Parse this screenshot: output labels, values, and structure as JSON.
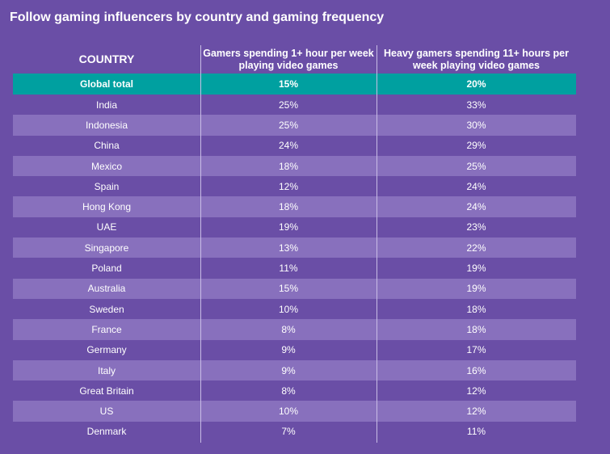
{
  "title": "Follow gaming influencers by country and gaming frequency",
  "colors": {
    "background": "#6a4ea6",
    "alt_row": "#8870bd",
    "highlight_row": "#00a0a0"
  },
  "chart_data": {
    "type": "table",
    "title": "Follow gaming influencers by country and gaming frequency",
    "columns": [
      "COUNTRY",
      "Gamers spending 1+ hour per week playing video games",
      "Heavy gamers spending 11+ hours per week playing video games"
    ],
    "rows": [
      [
        "Global total",
        "15%",
        "20%"
      ],
      [
        "India",
        "25%",
        "33%"
      ],
      [
        "Indonesia",
        "25%",
        "30%"
      ],
      [
        "China",
        "24%",
        "29%"
      ],
      [
        "Mexico",
        "18%",
        "25%"
      ],
      [
        "Spain",
        "12%",
        "24%"
      ],
      [
        "Hong Kong",
        "18%",
        "24%"
      ],
      [
        "UAE",
        "19%",
        "23%"
      ],
      [
        "Singapore",
        "13%",
        "22%"
      ],
      [
        "Poland",
        "11%",
        "19%"
      ],
      [
        "Australia",
        "15%",
        "19%"
      ],
      [
        "Sweden",
        "10%",
        "18%"
      ],
      [
        "France",
        "8%",
        "18%"
      ],
      [
        "Germany",
        "9%",
        "17%"
      ],
      [
        "Italy",
        "9%",
        "16%"
      ],
      [
        "Great Britain",
        "8%",
        "12%"
      ],
      [
        "US",
        "10%",
        "12%"
      ],
      [
        "Denmark",
        "7%",
        "11%"
      ]
    ]
  }
}
